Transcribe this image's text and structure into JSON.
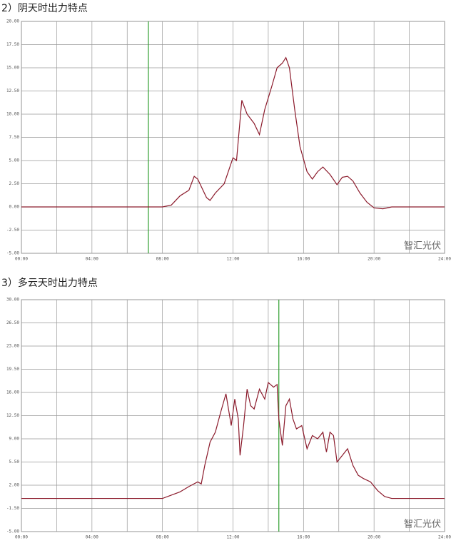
{
  "chart_data": [
    {
      "type": "line",
      "title": "2）阴天时出力特点",
      "watermark": "智汇光伏",
      "x": [
        0,
        8,
        8.5,
        9,
        9.5,
        9.8,
        10,
        10.5,
        10.7,
        11,
        11.5,
        12,
        12.2,
        12.5,
        12.8,
        13.2,
        13.5,
        13.8,
        14.2,
        14.5,
        14.8,
        15,
        15.2,
        15.5,
        15.8,
        16.2,
        16.5,
        16.8,
        17.1,
        17.5,
        17.9,
        18.2,
        18.5,
        18.8,
        19.2,
        19.6,
        20,
        20.5,
        21,
        24
      ],
      "series": [
        {
          "color": "#8b1a2b",
          "values": [
            0,
            0,
            0.2,
            1.2,
            1.8,
            3.3,
            3.0,
            1.0,
            0.7,
            1.5,
            2.5,
            5.3,
            5.0,
            11.5,
            10.0,
            9.0,
            7.8,
            10.5,
            13.0,
            15.0,
            15.5,
            16.1,
            15.0,
            10.5,
            6.5,
            3.8,
            3.0,
            3.8,
            4.3,
            3.5,
            2.4,
            3.2,
            3.3,
            2.8,
            1.5,
            0.5,
            -0.1,
            -0.2,
            0,
            0
          ]
        }
      ],
      "marker_x": 7.2,
      "marker_color": "#2e9e2e",
      "xlim": [
        0,
        24
      ],
      "xticks": [
        {
          "value": 0,
          "label": "00:00"
        },
        {
          "value": 2,
          "label": null
        },
        {
          "value": 4,
          "label": "04:00"
        },
        {
          "value": 6,
          "label": null
        },
        {
          "value": 8,
          "label": "08:00"
        },
        {
          "value": 10,
          "label": null
        },
        {
          "value": 12,
          "label": "12:00"
        },
        {
          "value": 14,
          "label": null
        },
        {
          "value": 16,
          "label": "16:00"
        },
        {
          "value": 18,
          "label": null
        },
        {
          "value": 20,
          "label": "20:00"
        },
        {
          "value": 22,
          "label": null
        },
        {
          "value": 24,
          "label": "24:00"
        }
      ],
      "ylim": [
        -5,
        20
      ],
      "yticks": [
        {
          "value": -5,
          "label": "-5.00"
        },
        {
          "value": -2.5,
          "label": "-2.50"
        },
        {
          "value": 0,
          "label": "0.00"
        },
        {
          "value": 2.5,
          "label": "2.50"
        },
        {
          "value": 5,
          "label": "5.00"
        },
        {
          "value": 7.5,
          "label": "7.50"
        },
        {
          "value": 10,
          "label": "10.00"
        },
        {
          "value": 12.5,
          "label": "12.50"
        },
        {
          "value": 15,
          "label": "15.00"
        },
        {
          "value": 17.5,
          "label": "17.50"
        },
        {
          "value": 20,
          "label": "20.00"
        }
      ],
      "grid": true
    },
    {
      "type": "line",
      "title": "3）多云天时出力特点",
      "watermark": "智汇光伏",
      "x": [
        0,
        8,
        8.5,
        9,
        9.5,
        10,
        10.2,
        10.4,
        10.7,
        11,
        11.3,
        11.6,
        11.9,
        12.1,
        12.3,
        12.4,
        12.6,
        12.8,
        13,
        13.2,
        13.5,
        13.8,
        14,
        14.3,
        14.5,
        14.6,
        14.8,
        15,
        15.2,
        15.4,
        15.6,
        15.9,
        16.2,
        16.5,
        16.8,
        17.1,
        17.3,
        17.5,
        17.7,
        17.9,
        18.2,
        18.5,
        18.8,
        19.1,
        19.4,
        19.8,
        20.2,
        20.6,
        21,
        24
      ],
      "series": [
        {
          "color": "#8b1a2b",
          "values": [
            0,
            0,
            0.5,
            1,
            1.8,
            2.5,
            2.2,
            5,
            8.5,
            10,
            13,
            15.8,
            11,
            15,
            12,
            6.5,
            11,
            16.5,
            14,
            13.5,
            16.5,
            15,
            17.5,
            16.8,
            17.2,
            12,
            8,
            14,
            15,
            12,
            10.5,
            11,
            7.5,
            9.5,
            9,
            10,
            7,
            10,
            9.5,
            5.5,
            6.5,
            7.5,
            5,
            3.5,
            3,
            2.5,
            1.2,
            0.3,
            0,
            0
          ]
        }
      ],
      "marker_x": 14.6,
      "marker_color": "#2e9e2e",
      "xlim": [
        0,
        24
      ],
      "xticks": [
        {
          "value": 0,
          "label": "00:00"
        },
        {
          "value": 2,
          "label": null
        },
        {
          "value": 4,
          "label": "04:00"
        },
        {
          "value": 6,
          "label": null
        },
        {
          "value": 8,
          "label": "08:00"
        },
        {
          "value": 10,
          "label": null
        },
        {
          "value": 12,
          "label": "12:00"
        },
        {
          "value": 14,
          "label": null
        },
        {
          "value": 16,
          "label": "16:00"
        },
        {
          "value": 18,
          "label": null
        },
        {
          "value": 20,
          "label": "20:00"
        },
        {
          "value": 22,
          "label": null
        },
        {
          "value": 24,
          "label": "24:00"
        }
      ],
      "ylim": [
        -5,
        30
      ],
      "yticks": [
        {
          "value": -5,
          "label": "-5.00"
        },
        {
          "value": -1.5,
          "label": "-1.50"
        },
        {
          "value": 2,
          "label": "2.00"
        },
        {
          "value": 5.5,
          "label": "5.50"
        },
        {
          "value": 9,
          "label": "9.00"
        },
        {
          "value": 12.5,
          "label": "12.50"
        },
        {
          "value": 16,
          "label": "16.00"
        },
        {
          "value": 19.5,
          "label": "19.50"
        },
        {
          "value": 23,
          "label": "23.00"
        },
        {
          "value": 26.5,
          "label": "26.50"
        },
        {
          "value": 30,
          "label": "30.00"
        }
      ],
      "grid": true
    }
  ]
}
